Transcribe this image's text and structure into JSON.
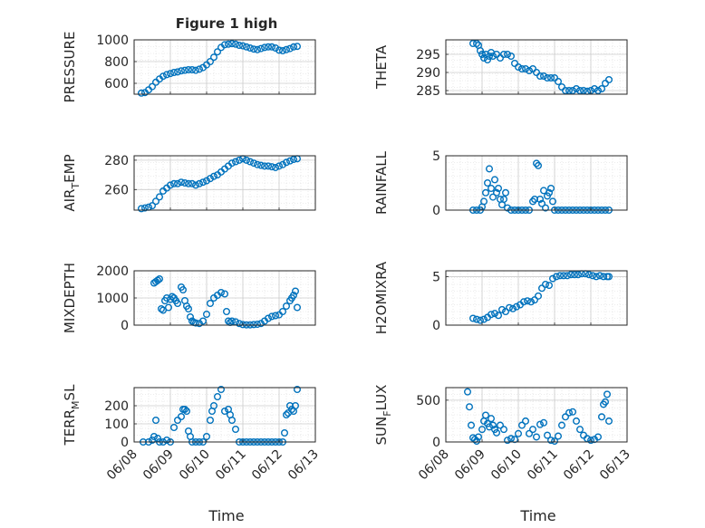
{
  "figure_title": "Figure 1 high",
  "marker_color": "#0072BD",
  "xlabel": "Time",
  "x_ticks": [
    "06/08",
    "06/09",
    "06/10",
    "06/11",
    "06/12",
    "06/13"
  ],
  "chart_data": [
    {
      "type": "scatter",
      "id": "pressure",
      "title": "Figure 1 high",
      "ylabel": "PRESSURE",
      "ylabel_sub": "",
      "xlim": [
        "06/08",
        "06/13"
      ],
      "ylim": [
        500,
        1000
      ],
      "yticks": [
        600,
        800,
        1000
      ],
      "grid": "minor",
      "series": [
        {
          "x": [
            0.2,
            0.3,
            0.4,
            0.5,
            0.6,
            0.7,
            0.8,
            0.9,
            1.0,
            1.1,
            1.2,
            1.3,
            1.4,
            1.5,
            1.6,
            1.7,
            1.8,
            1.9,
            2.0,
            2.1,
            2.2,
            2.3,
            2.4,
            2.5,
            2.6,
            2.7,
            2.8,
            2.9,
            3.0,
            3.1,
            3.2,
            3.3,
            3.4,
            3.5,
            3.6,
            3.7,
            3.8,
            3.9,
            4.0,
            4.1,
            4.2,
            4.3,
            4.4,
            4.5
          ],
          "y": [
            510,
            515,
            540,
            570,
            610,
            640,
            665,
            680,
            690,
            700,
            705,
            715,
            720,
            725,
            725,
            720,
            730,
            745,
            770,
            800,
            840,
            890,
            930,
            955,
            960,
            965,
            960,
            950,
            945,
            935,
            925,
            915,
            910,
            920,
            930,
            935,
            935,
            925,
            905,
            900,
            910,
            920,
            935,
            940
          ]
        }
      ]
    },
    {
      "type": "scatter",
      "id": "theta",
      "title": "",
      "ylabel": "THETA",
      "ylabel_sub": "",
      "xlim": [
        "06/08",
        "06/13"
      ],
      "ylim": [
        284,
        299
      ],
      "yticks": [
        285,
        290,
        295
      ],
      "grid": "minor",
      "series": [
        {
          "x": [
            0.75,
            0.85,
            0.9,
            0.95,
            1.0,
            1.05,
            1.1,
            1.15,
            1.2,
            1.25,
            1.3,
            1.4,
            1.5,
            1.6,
            1.7,
            1.8,
            1.9,
            2.0,
            2.1,
            2.2,
            2.3,
            2.4,
            2.5,
            2.6,
            2.7,
            2.8,
            2.9,
            3.0,
            3.1,
            3.2,
            3.3,
            3.4,
            3.5,
            3.6,
            3.7,
            3.8,
            3.9,
            4.0,
            4.1,
            4.2,
            4.3,
            4.4,
            4.5
          ],
          "y": [
            298,
            298,
            297.5,
            296,
            295,
            294,
            295,
            293.5,
            294.5,
            295.5,
            294.5,
            295,
            294,
            295,
            295,
            294.5,
            292.5,
            291.5,
            291,
            291,
            290.5,
            291,
            290,
            289,
            289,
            288.5,
            288.5,
            288.5,
            287.5,
            286,
            285,
            285,
            285,
            285.5,
            285,
            285,
            284.8,
            285,
            285.5,
            285,
            285.5,
            287,
            288
          ]
        }
      ]
    },
    {
      "type": "scatter",
      "id": "air-temp",
      "title": "",
      "ylabel": "AIR",
      "ylabel_sub": "T",
      "ylabel_tail": "EMP",
      "xlim": [
        "06/08",
        "06/13"
      ],
      "ylim": [
        246,
        283
      ],
      "yticks": [
        260,
        280
      ],
      "grid": "minor",
      "series": [
        {
          "x": [
            0.2,
            0.3,
            0.4,
            0.5,
            0.6,
            0.7,
            0.8,
            0.9,
            1.0,
            1.1,
            1.2,
            1.3,
            1.4,
            1.5,
            1.6,
            1.7,
            1.8,
            1.9,
            2.0,
            2.1,
            2.2,
            2.3,
            2.4,
            2.5,
            2.6,
            2.7,
            2.8,
            2.9,
            3.0,
            3.1,
            3.2,
            3.3,
            3.4,
            3.5,
            3.6,
            3.7,
            3.8,
            3.9,
            4.0,
            4.1,
            4.2,
            4.3,
            4.4,
            4.5
          ],
          "y": [
            247,
            247.5,
            248,
            249,
            252,
            255,
            259,
            261,
            263,
            264,
            264,
            265,
            264.5,
            264,
            264,
            263,
            264,
            265,
            266,
            267.5,
            269,
            270,
            272,
            274,
            276,
            278,
            279,
            280,
            281,
            280,
            279,
            278,
            277,
            276.5,
            276,
            276,
            275.5,
            275,
            276,
            277,
            278.5,
            279.5,
            280.5,
            281
          ]
        }
      ]
    },
    {
      "type": "scatter",
      "id": "rainfall",
      "title": "",
      "ylabel": "RAINFALL",
      "ylabel_sub": "",
      "xlim": [
        "06/08",
        "06/13"
      ],
      "ylim": [
        0,
        5
      ],
      "yticks": [
        0,
        5
      ],
      "grid": "minor",
      "series": [
        {
          "x": [
            0.75,
            0.85,
            0.95,
            1.0,
            1.05,
            1.1,
            1.15,
            1.2,
            1.25,
            1.3,
            1.35,
            1.4,
            1.45,
            1.5,
            1.55,
            1.6,
            1.65,
            1.7,
            1.8,
            1.9,
            2.0,
            2.1,
            2.2,
            2.3,
            2.4,
            2.45,
            2.5,
            2.55,
            2.6,
            2.65,
            2.7,
            2.75,
            2.8,
            2.85,
            2.9,
            2.95,
            3.0,
            3.1,
            3.2,
            3.3,
            3.4,
            3.5,
            3.6,
            3.7,
            3.8,
            3.9,
            4.0,
            4.1,
            4.2,
            4.3,
            4.4,
            4.5
          ],
          "y": [
            0,
            0,
            0,
            0.3,
            0.8,
            1.6,
            2.5,
            3.8,
            2.0,
            1.2,
            2.8,
            1.6,
            2.0,
            1.0,
            0.5,
            1.0,
            1.6,
            0.2,
            0,
            0,
            0,
            0,
            0,
            0,
            0.8,
            1.0,
            4.3,
            4.1,
            1.0,
            0.6,
            1.8,
            0.2,
            1.3,
            1.6,
            2.0,
            0.8,
            0,
            0,
            0,
            0,
            0,
            0,
            0,
            0,
            0,
            0,
            0,
            0,
            0,
            0,
            0,
            0
          ]
        }
      ]
    },
    {
      "type": "scatter",
      "id": "mixdepth",
      "title": "",
      "ylabel": "MIXDEPTH",
      "ylabel_sub": "",
      "xlim": [
        "06/08",
        "06/13"
      ],
      "ylim": [
        0,
        2000
      ],
      "yticks": [
        0,
        1000,
        2000
      ],
      "grid": "minor",
      "series": [
        {
          "x": [
            0.55,
            0.6,
            0.65,
            0.7,
            0.75,
            0.8,
            0.85,
            0.9,
            0.95,
            1.0,
            1.05,
            1.1,
            1.15,
            1.2,
            1.3,
            1.35,
            1.4,
            1.45,
            1.5,
            1.55,
            1.6,
            1.65,
            1.7,
            1.8,
            1.9,
            2.0,
            2.1,
            2.2,
            2.3,
            2.4,
            2.5,
            2.55,
            2.6,
            2.65,
            2.7,
            2.8,
            2.9,
            3.0,
            3.1,
            3.2,
            3.3,
            3.4,
            3.5,
            3.6,
            3.7,
            3.8,
            3.9,
            4.0,
            4.1,
            4.2,
            4.3,
            4.35,
            4.4,
            4.45,
            4.5
          ],
          "y": [
            1550,
            1600,
            1650,
            1700,
            600,
            550,
            900,
            1000,
            650,
            950,
            1050,
            1000,
            900,
            800,
            1400,
            1300,
            900,
            700,
            600,
            300,
            150,
            100,
            80,
            60,
            150,
            400,
            800,
            1000,
            1100,
            1200,
            1150,
            500,
            150,
            100,
            150,
            120,
            60,
            20,
            10,
            10,
            20,
            30,
            60,
            150,
            250,
            320,
            350,
            380,
            500,
            700,
            900,
            1000,
            1100,
            1250,
            650
          ]
        }
      ]
    },
    {
      "type": "scatter",
      "id": "h2omixra",
      "title": "",
      "ylabel": "H2OMIXRA",
      "ylabel_sub": "",
      "xlim": [
        "06/08",
        "06/13"
      ],
      "ylim": [
        0,
        5.6
      ],
      "yticks": [
        0,
        5
      ],
      "grid": "minor",
      "series": [
        {
          "x": [
            0.75,
            0.85,
            0.95,
            1.05,
            1.15,
            1.25,
            1.35,
            1.45,
            1.55,
            1.65,
            1.75,
            1.85,
            1.95,
            2.05,
            2.15,
            2.25,
            2.35,
            2.45,
            2.55,
            2.65,
            2.75,
            2.85,
            2.95,
            3.05,
            3.15,
            3.25,
            3.35,
            3.45,
            3.55,
            3.65,
            3.75,
            3.85,
            3.95,
            4.05,
            4.15,
            4.25,
            4.35,
            4.45,
            4.5
          ],
          "y": [
            0.7,
            0.6,
            0.5,
            0.6,
            0.8,
            1.1,
            1.2,
            1.0,
            1.6,
            1.4,
            1.8,
            1.7,
            1.9,
            2.1,
            2.4,
            2.5,
            2.4,
            2.6,
            3.0,
            3.8,
            4.2,
            4.1,
            4.8,
            5.0,
            5.1,
            5.1,
            5.1,
            5.2,
            5.2,
            5.2,
            5.3,
            5.3,
            5.2,
            5.1,
            5.0,
            5.1,
            5.0,
            5.0,
            5.0
          ]
        }
      ]
    },
    {
      "type": "scatter",
      "id": "terr-msl",
      "title": "",
      "ylabel": "TERR",
      "ylabel_sub": "M",
      "ylabel_tail": "SL",
      "xlim": [
        "06/08",
        "06/13"
      ],
      "ylim": [
        0,
        300
      ],
      "yticks": [
        0,
        100,
        200
      ],
      "grid": "minor",
      "series": [
        {
          "x": [
            0.25,
            0.4,
            0.5,
            0.55,
            0.6,
            0.65,
            0.7,
            0.8,
            0.9,
            1.0,
            1.1,
            1.2,
            1.3,
            1.35,
            1.4,
            1.45,
            1.5,
            1.55,
            1.6,
            1.7,
            1.8,
            1.9,
            2.0,
            2.1,
            2.15,
            2.2,
            2.3,
            2.4,
            2.5,
            2.6,
            2.65,
            2.7,
            2.8,
            2.9,
            3.0,
            3.1,
            3.2,
            3.3,
            3.4,
            3.5,
            3.6,
            3.7,
            3.8,
            3.9,
            4.0,
            4.1,
            4.15,
            4.2,
            4.25,
            4.3,
            4.35,
            4.4,
            4.45,
            4.5
          ],
          "y": [
            0,
            0,
            10,
            30,
            120,
            20,
            0,
            0,
            10,
            0,
            80,
            120,
            140,
            180,
            180,
            170,
            60,
            30,
            0,
            0,
            0,
            0,
            30,
            120,
            170,
            200,
            250,
            290,
            170,
            180,
            150,
            120,
            70,
            0,
            0,
            0,
            0,
            0,
            0,
            0,
            0,
            0,
            0,
            0,
            0,
            0,
            50,
            150,
            160,
            200,
            180,
            170,
            200,
            290
          ]
        }
      ]
    },
    {
      "type": "scatter",
      "id": "sun-flux",
      "title": "",
      "ylabel": "SUN",
      "ylabel_sub": "F",
      "ylabel_tail": "LUX",
      "xlim": [
        "06/08",
        "06/13"
      ],
      "ylim": [
        0,
        650
      ],
      "yticks": [
        0,
        500
      ],
      "grid": "minor",
      "series": [
        {
          "x": [
            0.6,
            0.65,
            0.7,
            0.75,
            0.8,
            0.85,
            0.9,
            1.0,
            1.05,
            1.1,
            1.15,
            1.2,
            1.25,
            1.3,
            1.35,
            1.4,
            1.5,
            1.6,
            1.7,
            1.8,
            1.9,
            2.0,
            2.1,
            2.2,
            2.3,
            2.4,
            2.5,
            2.6,
            2.7,
            2.8,
            2.9,
            3.0,
            3.1,
            3.2,
            3.3,
            3.4,
            3.5,
            3.6,
            3.7,
            3.8,
            3.9,
            4.0,
            4.1,
            4.2,
            4.3,
            4.35,
            4.4,
            4.45,
            4.5
          ],
          "y": [
            600,
            420,
            200,
            50,
            30,
            10,
            60,
            150,
            250,
            320,
            220,
            180,
            280,
            200,
            150,
            110,
            200,
            150,
            20,
            40,
            30,
            100,
            200,
            250,
            100,
            150,
            60,
            210,
            230,
            80,
            20,
            10,
            70,
            200,
            300,
            350,
            360,
            250,
            150,
            80,
            40,
            20,
            30,
            60,
            300,
            450,
            480,
            570,
            250
          ]
        }
      ]
    }
  ]
}
